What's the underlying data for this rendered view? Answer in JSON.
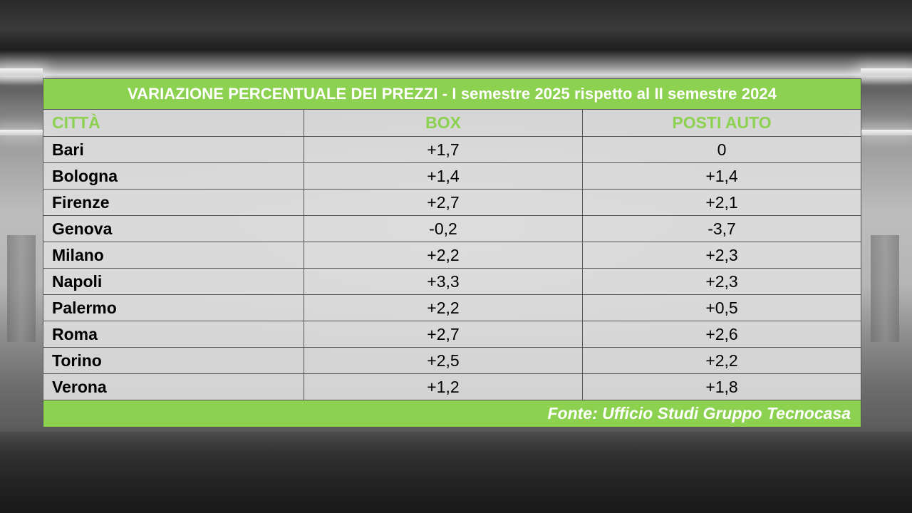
{
  "table": {
    "title": "VARIAZIONE PERCENTUALE DEI PREZZI - I semestre 2025 rispetto al II semestre 2024",
    "headers": {
      "city": "CITTÀ",
      "box": "BOX",
      "posti_auto": "POSTI AUTO"
    },
    "rows": [
      {
        "city": "Bari",
        "box": "+1,7",
        "posti_auto": "0"
      },
      {
        "city": "Bologna",
        "box": "+1,4",
        "posti_auto": "+1,4"
      },
      {
        "city": "Firenze",
        "box": "+2,7",
        "posti_auto": "+2,1"
      },
      {
        "city": "Genova",
        "box": "-0,2",
        "posti_auto": "-3,7"
      },
      {
        "city": "Milano",
        "box": "+2,2",
        "posti_auto": "+2,3"
      },
      {
        "city": "Napoli",
        "box": "+3,3",
        "posti_auto": "+2,3"
      },
      {
        "city": "Palermo",
        "box": "+2,2",
        "posti_auto": "+0,5"
      },
      {
        "city": "Roma",
        "box": "+2,7",
        "posti_auto": "+2,6"
      },
      {
        "city": "Torino",
        "box": "+2,5",
        "posti_auto": "+2,2"
      },
      {
        "city": "Verona",
        "box": "+1,2",
        "posti_auto": "+1,8"
      }
    ],
    "source": "Fonte: Ufficio Studi Gruppo Tecnocasa"
  },
  "colors": {
    "accent_green": "#8cd150",
    "row_background": "#dcdcdc",
    "text": "#000000",
    "title_text": "#ffffff"
  }
}
